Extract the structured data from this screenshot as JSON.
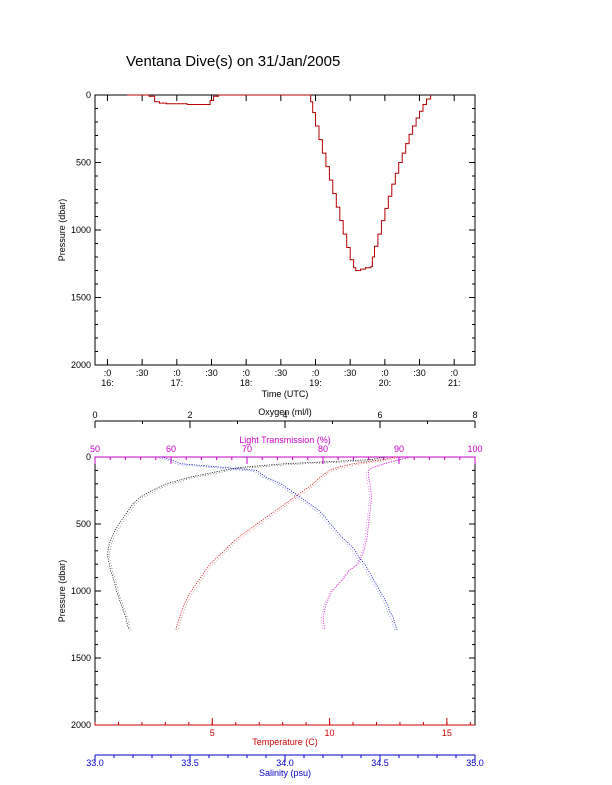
{
  "title": "Ventana Dive(s) on 31/Jan/2005",
  "chart_data": [
    {
      "type": "line",
      "xlabel": "Time (UTC)",
      "ylabel": "Pressure (dbar)",
      "x_ticks": [
        {
          "t": 16.0,
          "top": ":0",
          "bottom": "16:"
        },
        {
          "t": 16.5,
          "top": ":30",
          "bottom": ""
        },
        {
          "t": 17.0,
          "top": ":0",
          "bottom": "17:"
        },
        {
          "t": 17.5,
          "top": ":30",
          "bottom": ""
        },
        {
          "t": 18.0,
          "top": ":0",
          "bottom": "18:"
        },
        {
          "t": 18.5,
          "top": ":30",
          "bottom": ""
        },
        {
          "t": 19.0,
          "top": ":0",
          "bottom": "19:"
        },
        {
          "t": 19.5,
          "top": ":30",
          "bottom": ""
        },
        {
          "t": 20.0,
          "top": ":0",
          "bottom": "20:"
        },
        {
          "t": 20.5,
          "top": ":30",
          "bottom": ""
        },
        {
          "t": 21.0,
          "top": ":0",
          "bottom": "21:"
        }
      ],
      "xlim": [
        15.82,
        21.3
      ],
      "ylim": [
        2000,
        0
      ],
      "y_ticks": [
        0,
        500,
        1000,
        1500,
        2000
      ],
      "series": [
        {
          "color": "#cc0000",
          "x": [
            16.28,
            16.55,
            16.6,
            16.68,
            16.75,
            16.85,
            17.0,
            17.15,
            17.3,
            17.45,
            17.48,
            17.53,
            17.6,
            17.8,
            18.0,
            18.5,
            18.9,
            18.93,
            18.96,
            19.0,
            19.05,
            19.1,
            19.15,
            19.2,
            19.25,
            19.3,
            19.35,
            19.4,
            19.45,
            19.5,
            19.55,
            19.58,
            19.65,
            19.72,
            19.8,
            19.82,
            19.85,
            19.9,
            19.95,
            20.0,
            20.05,
            20.1,
            20.15,
            20.2,
            20.25,
            20.3,
            20.35,
            20.4,
            20.45,
            20.5,
            20.55,
            20.6,
            20.66
          ],
          "y": [
            0,
            0,
            10,
            50,
            60,
            65,
            65,
            70,
            70,
            70,
            40,
            10,
            0,
            0,
            0,
            0,
            0,
            50,
            130,
            230,
            330,
            430,
            530,
            630,
            730,
            830,
            930,
            1030,
            1130,
            1220,
            1280,
            1300,
            1290,
            1280,
            1270,
            1200,
            1120,
            1030,
            930,
            840,
            750,
            660,
            580,
            500,
            430,
            360,
            290,
            230,
            170,
            120,
            70,
            30,
            0
          ]
        }
      ]
    },
    {
      "type": "scatter",
      "ylabel": "Pressure (dbar)",
      "ylim": [
        2000,
        0
      ],
      "y_ticks": [
        0,
        500,
        1000,
        1500,
        2000
      ],
      "axes": {
        "oxygen": {
          "label": "Oxygen (ml/l)",
          "color": "#000000",
          "range": [
            0,
            8
          ],
          "ticks": [
            0,
            2,
            4,
            6,
            8
          ],
          "minor": 1
        },
        "transmission": {
          "label": "Light Transmission (%)",
          "color": "#cc00cc",
          "range": [
            50,
            100
          ],
          "ticks": [
            50,
            60,
            70,
            80,
            90,
            100
          ],
          "minor": 2
        },
        "temperature": {
          "label": "Temperature (C)",
          "color": "#cc0000",
          "range": [
            0,
            16.2
          ],
          "ticks": [
            5,
            10,
            15
          ],
          "minor": 1
        },
        "salinity": {
          "label": "Salinity (psu)",
          "color": "#0000cc",
          "range": [
            33.0,
            35.0
          ],
          "ticks_text": [
            "33.0",
            "33.5",
            "34.0",
            "34.5",
            "35.0"
          ],
          "ticks": [
            33.0,
            33.5,
            34.0,
            34.5,
            35.0
          ],
          "minor": 0.1
        }
      },
      "series": [
        {
          "axis": "oxygen",
          "color": "#000000",
          "p": [
            0,
            20,
            50,
            80,
            100,
            150,
            200,
            250,
            300,
            350,
            400,
            450,
            500,
            550,
            600,
            650,
            700,
            750,
            800,
            850,
            900,
            950,
            1000,
            1050,
            1100,
            1150,
            1200,
            1250,
            1290
          ],
          "v": [
            6.1,
            5.8,
            4.0,
            3.0,
            2.7,
            2.0,
            1.5,
            1.2,
            0.95,
            0.8,
            0.7,
            0.6,
            0.5,
            0.42,
            0.35,
            0.3,
            0.27,
            0.27,
            0.3,
            0.33,
            0.38,
            0.42,
            0.45,
            0.5,
            0.55,
            0.6,
            0.65,
            0.68,
            0.72
          ]
        },
        {
          "axis": "transmission",
          "color": "#cc00cc",
          "p": [
            0,
            20,
            50,
            80,
            100,
            150,
            200,
            300,
            400,
            500,
            600,
            700,
            800,
            850,
            900,
            950,
            1000,
            1050,
            1100,
            1150,
            1200,
            1250,
            1290
          ],
          "v": [
            91.5,
            90.0,
            88.0,
            86.5,
            86.0,
            86.0,
            86.2,
            86.4,
            86.2,
            86.0,
            85.8,
            85.4,
            84.6,
            83.4,
            82.8,
            82.0,
            81.2,
            80.8,
            80.4,
            80.2,
            80.0,
            80.1,
            80.3
          ]
        },
        {
          "axis": "temperature",
          "color": "#cc0000",
          "p": [
            0,
            20,
            50,
            80,
            100,
            150,
            200,
            250,
            300,
            350,
            400,
            450,
            500,
            550,
            600,
            650,
            700,
            750,
            800,
            850,
            900,
            950,
            1000,
            1050,
            1100,
            1150,
            1200,
            1250,
            1290
          ],
          "v": [
            12.8,
            12.3,
            11.0,
            10.3,
            10.0,
            9.6,
            9.3,
            8.9,
            8.5,
            8.1,
            7.7,
            7.3,
            6.9,
            6.5,
            6.1,
            5.8,
            5.5,
            5.2,
            4.9,
            4.7,
            4.5,
            4.3,
            4.1,
            3.95,
            3.8,
            3.7,
            3.6,
            3.5,
            3.45
          ]
        },
        {
          "axis": "salinity",
          "color": "#0000cc",
          "p": [
            0,
            20,
            50,
            80,
            100,
            150,
            200,
            250,
            300,
            350,
            400,
            450,
            500,
            550,
            600,
            650,
            700,
            750,
            800,
            850,
            900,
            950,
            1000,
            1050,
            1100,
            1150,
            1200,
            1250,
            1290
          ],
          "v": [
            33.35,
            33.4,
            33.45,
            33.7,
            33.85,
            33.9,
            33.98,
            34.03,
            34.08,
            34.13,
            34.18,
            34.21,
            34.24,
            34.27,
            34.3,
            34.34,
            34.37,
            34.39,
            34.42,
            34.44,
            34.46,
            34.48,
            34.5,
            34.52,
            34.54,
            34.55,
            34.57,
            34.58,
            34.59
          ]
        }
      ]
    }
  ]
}
